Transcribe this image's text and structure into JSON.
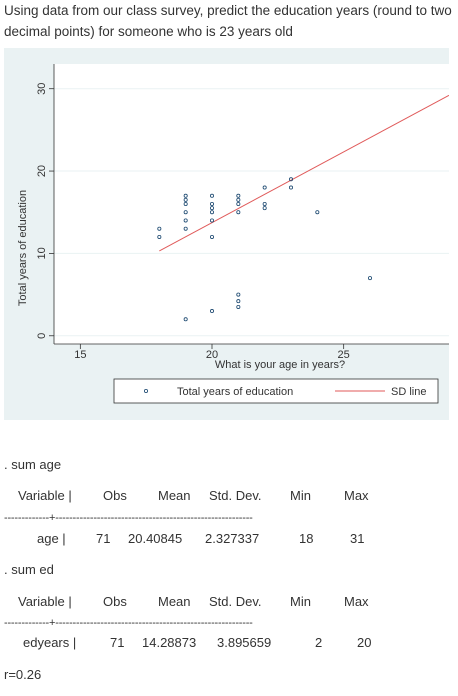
{
  "question": "Using data from our class survey, predict the education years (round to two decimal points) for someone who is 23 years old",
  "chart_data": {
    "type": "scatter",
    "xlabel": "What is your age in years?",
    "ylabel": "Total years of education",
    "xlim": [
      14,
      29
    ],
    "ylim": [
      -1,
      33
    ],
    "xticks": [
      "15",
      "20",
      "25"
    ],
    "yticks": [
      "0",
      "10",
      "20",
      "30"
    ],
    "series": [
      {
        "name": "Total years of education",
        "marker": "hollow-circle",
        "color": "#1a476f",
        "points": [
          [
            18,
            12
          ],
          [
            18,
            13
          ],
          [
            19,
            2
          ],
          [
            19,
            13
          ],
          [
            19,
            14
          ],
          [
            19,
            15
          ],
          [
            19,
            16
          ],
          [
            19,
            16.5
          ],
          [
            19,
            17
          ],
          [
            20,
            3
          ],
          [
            20,
            12
          ],
          [
            20,
            14
          ],
          [
            20,
            15
          ],
          [
            20,
            15.5
          ],
          [
            20,
            16
          ],
          [
            20,
            17
          ],
          [
            21,
            3.5
          ],
          [
            21,
            4.2
          ],
          [
            21,
            5
          ],
          [
            21,
            15
          ],
          [
            21,
            16
          ],
          [
            21,
            16.5
          ],
          [
            21,
            17
          ],
          [
            22,
            15.5
          ],
          [
            22,
            16
          ],
          [
            22,
            18
          ],
          [
            23,
            18
          ],
          [
            23,
            19
          ],
          [
            24,
            15
          ],
          [
            26,
            7
          ]
        ]
      },
      {
        "name": "SD line",
        "type": "line",
        "color": "#e05a5a",
        "points": [
          [
            18,
            10.3
          ],
          [
            29,
            29.2
          ]
        ]
      }
    ],
    "legend": {
      "placement": "bottom"
    },
    "grid": true
  },
  "output": {
    "cmd1": ". sum age",
    "cmd2": ". sum ed",
    "headers": [
      "Variable |",
      "Obs",
      "Mean",
      "Std. Dev.",
      "Min",
      "Max"
    ],
    "divider": "-------------+---------------------------------------------------------",
    "rows": [
      {
        "var": "age |",
        "obs": "71",
        "mean": "20.40845",
        "sd": "2.327337",
        "min": "18",
        "max": "31"
      },
      {
        "var": "edyears |",
        "obs": "71",
        "mean": "14.28873",
        "sd": "3.895659",
        "min": "2",
        "max": "20"
      }
    ],
    "r": "r=0.26"
  }
}
